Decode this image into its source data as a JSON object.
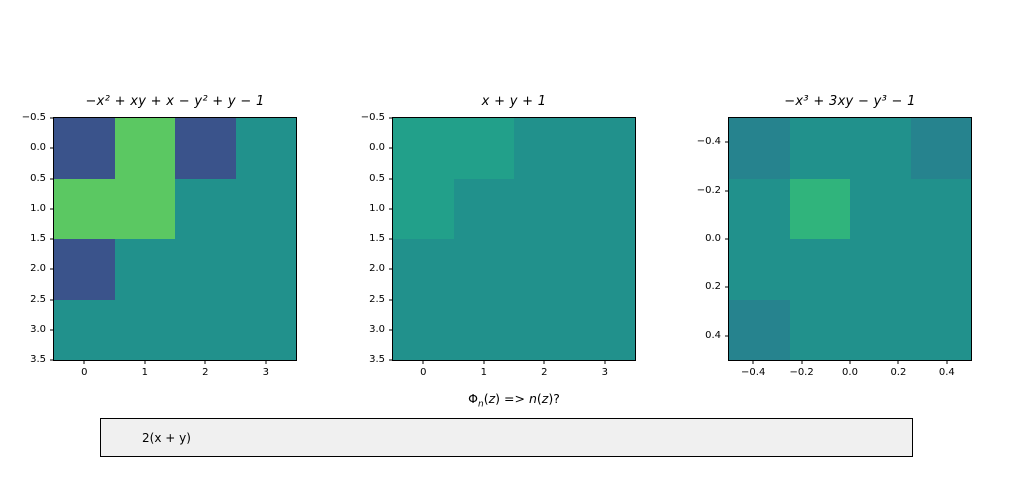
{
  "figure": {
    "background": "#ffffff"
  },
  "palette": {
    "blue": "#3a538b",
    "green": "#5bc862",
    "teal": "#21918c",
    "teal_light": "#22a08a",
    "teal_dark": "#26838e",
    "green_mid": "#30b47c",
    "axes_border": "#000000",
    "text": "#000000",
    "box_bg": "#f0f0f0"
  },
  "chart_data": [
    {
      "type": "heatmap",
      "title": "−x² + xy + x − y² + y − 1",
      "x_range": [
        -0.5,
        3.5
      ],
      "y_range": [
        -0.5,
        3.5
      ],
      "x_tick_labels": [
        "0",
        "1",
        "2",
        "3"
      ],
      "x_tick_values": [
        0,
        1,
        2,
        3
      ],
      "y_tick_labels": [
        "−0.5",
        "0.0",
        "0.5",
        "1.0",
        "1.5",
        "2.0",
        "2.5",
        "3.0",
        "3.5"
      ],
      "y_tick_values": [
        -0.5,
        0,
        0.5,
        1,
        1.5,
        2,
        2.5,
        3,
        3.5
      ],
      "grid_shape": [
        4,
        4
      ],
      "legend": "off",
      "cells": [
        [
          "blue",
          "green",
          "blue",
          "teal"
        ],
        [
          "green",
          "green",
          "teal",
          "teal"
        ],
        [
          "blue",
          "teal",
          "teal",
          "teal"
        ],
        [
          "teal",
          "teal",
          "teal",
          "teal"
        ]
      ]
    },
    {
      "type": "heatmap",
      "title": "x + y + 1",
      "xlabel": "Φₙ(z) => n(z)?",
      "xlabel_parts": [
        {
          "t": "Φ",
          "i": 0,
          "sub": 0
        },
        {
          "t": "n",
          "i": 1,
          "sub": 1
        },
        {
          "t": "(",
          "i": 0,
          "sub": 0
        },
        {
          "t": "z",
          "i": 1,
          "sub": 0
        },
        {
          "t": ") => ",
          "i": 0,
          "sub": 0
        },
        {
          "t": "n",
          "i": 1,
          "sub": 0
        },
        {
          "t": "(",
          "i": 0,
          "sub": 0
        },
        {
          "t": "z",
          "i": 1,
          "sub": 0
        },
        {
          "t": ")?",
          "i": 0,
          "sub": 0
        }
      ],
      "x_range": [
        -0.5,
        3.5
      ],
      "y_range": [
        -0.5,
        3.5
      ],
      "x_tick_labels": [
        "0",
        "1",
        "2",
        "3"
      ],
      "x_tick_values": [
        0,
        1,
        2,
        3
      ],
      "y_tick_labels": [
        "−0.5",
        "0.0",
        "0.5",
        "1.0",
        "1.5",
        "2.0",
        "2.5",
        "3.0",
        "3.5"
      ],
      "y_tick_values": [
        -0.5,
        0,
        0.5,
        1,
        1.5,
        2,
        2.5,
        3,
        3.5
      ],
      "grid_shape": [
        4,
        4
      ],
      "legend": "off",
      "cells": [
        [
          "teal_light",
          "teal_light",
          "teal",
          "teal"
        ],
        [
          "teal_light",
          "teal",
          "teal",
          "teal"
        ],
        [
          "teal",
          "teal",
          "teal",
          "teal"
        ],
        [
          "teal",
          "teal",
          "teal",
          "teal"
        ]
      ]
    },
    {
      "type": "heatmap",
      "title": "−x³ + 3xy − y³ − 1",
      "x_range": [
        -0.5,
        0.5
      ],
      "y_range": [
        -0.5,
        0.5
      ],
      "x_tick_labels": [
        "−0.4",
        "−0.2",
        "0.0",
        "0.2",
        "0.4"
      ],
      "x_tick_values": [
        -0.4,
        -0.2,
        0,
        0.2,
        0.4
      ],
      "y_tick_labels": [
        "−0.4",
        "−0.2",
        "0.0",
        "0.2",
        "0.4"
      ],
      "y_tick_values": [
        -0.4,
        -0.2,
        0,
        0.2,
        0.4
      ],
      "grid_shape": [
        4,
        4
      ],
      "legend": "off",
      "cells": [
        [
          "teal_dark",
          "teal",
          "teal",
          "teal_dark"
        ],
        [
          "teal",
          "green_mid",
          "teal",
          "teal"
        ],
        [
          "teal",
          "teal",
          "teal",
          "teal"
        ],
        [
          "teal_dark",
          "teal",
          "teal",
          "teal"
        ]
      ]
    }
  ],
  "answer_box": {
    "value": "2(x + y)"
  }
}
